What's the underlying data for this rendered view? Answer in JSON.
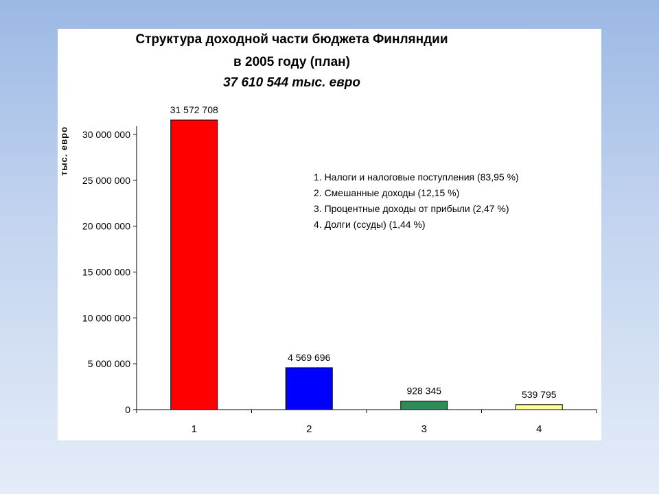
{
  "chart_data": {
    "type": "bar",
    "title": "Структура доходной части бюджета Финляндии",
    "title_line2": "в 2005 году (план)",
    "subtitle": "37 610 544 тыс. евро",
    "ylabel": "тыс. евро",
    "xlabel": "",
    "categories": [
      "1",
      "2",
      "3",
      "4"
    ],
    "values": [
      31572708,
      4569696,
      928345,
      539795
    ],
    "data_labels": [
      "31 572 708",
      "4 569 696",
      "928 345",
      "539 795"
    ],
    "colors": [
      "#ff0000",
      "#0000ff",
      "#2e8b57",
      "#ffff99"
    ],
    "ylim": [
      0,
      30000000
    ],
    "yticks": [
      0,
      5000000,
      10000000,
      15000000,
      20000000,
      25000000,
      30000000
    ],
    "ytick_labels": [
      "0",
      "5 000 000",
      "10 000 000",
      "15 000 000",
      "20 000 000",
      "25 000 000",
      "30 000 000"
    ],
    "annotations": [
      "1. Налоги и налоговые поступления (83,95 %)",
      "2. Смешанные доходы (12,15 %)",
      "3. Процентные доходы от прибыли (2,47 %)",
      "4. Долги (ссуды)  (1,44 %)"
    ],
    "grid": false,
    "legend": "none"
  }
}
